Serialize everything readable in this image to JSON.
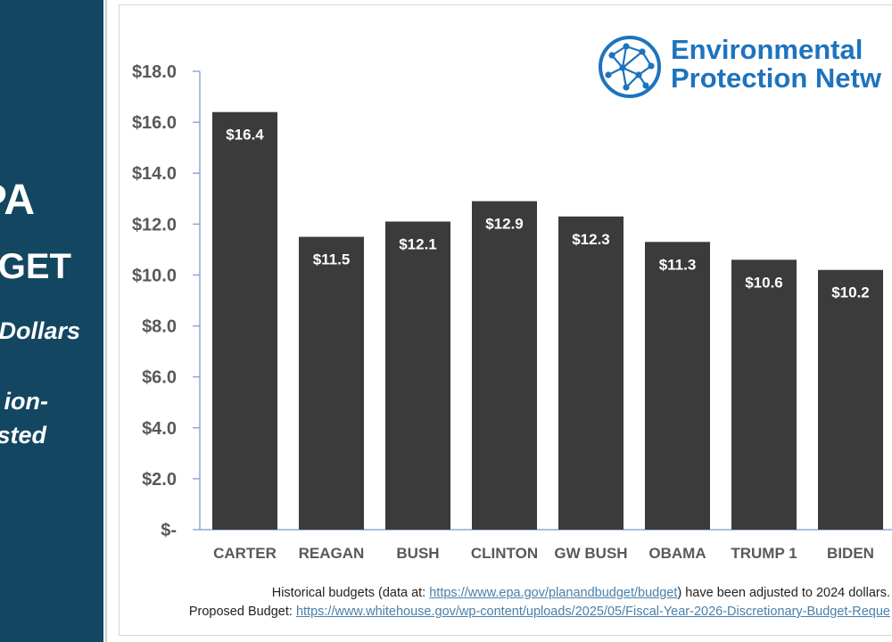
{
  "left_panel": {
    "line1": "PA",
    "line2": "GET",
    "line3": "Dollars",
    "line4": "ion-",
    "line5": "sted",
    "background": "#134660"
  },
  "logo": {
    "line1": "Environmental",
    "line2": "Protection Netw",
    "icon": "network-globe-icon",
    "color": "#1e73be"
  },
  "chart_data": {
    "type": "bar",
    "categories": [
      "CARTER",
      "REAGAN",
      "BUSH",
      "CLINTON",
      "GW BUSH",
      "OBAMA",
      "TRUMP 1",
      "BIDEN"
    ],
    "values": [
      16.4,
      11.5,
      12.1,
      12.9,
      12.3,
      11.3,
      10.6,
      10.2
    ],
    "data_labels": [
      "$16.4",
      "$11.5",
      "$12.1",
      "$12.9",
      "$12.3",
      "$11.3",
      "$10.6",
      "$10.2"
    ],
    "y_ticks": [
      0,
      2,
      4,
      6,
      8,
      10,
      12,
      14,
      16,
      18
    ],
    "y_tick_labels": [
      "$-",
      "$2.0",
      "$4.0",
      "$6.0",
      "$8.0",
      "$10.0",
      "$12.0",
      "$14.0",
      "$16.0",
      "$18.0"
    ],
    "ylim": [
      0,
      18
    ],
    "bar_color": "#3b3b3b",
    "axis_color": "#8eaad6",
    "grid": false
  },
  "footnotes": {
    "line1_prefix": "Historical budgets (data at: ",
    "line1_link": "https://www.epa.gov/planandbudget/budget",
    "line1_suffix": ") have been adjusted to 2024 dollars.",
    "line2_prefix": "Proposed Budget: ",
    "line2_link": "https://www.whitehouse.gov/wp-content/uploads/2025/05/Fiscal-Year-2026-Discretionary-Budget-Reque"
  }
}
